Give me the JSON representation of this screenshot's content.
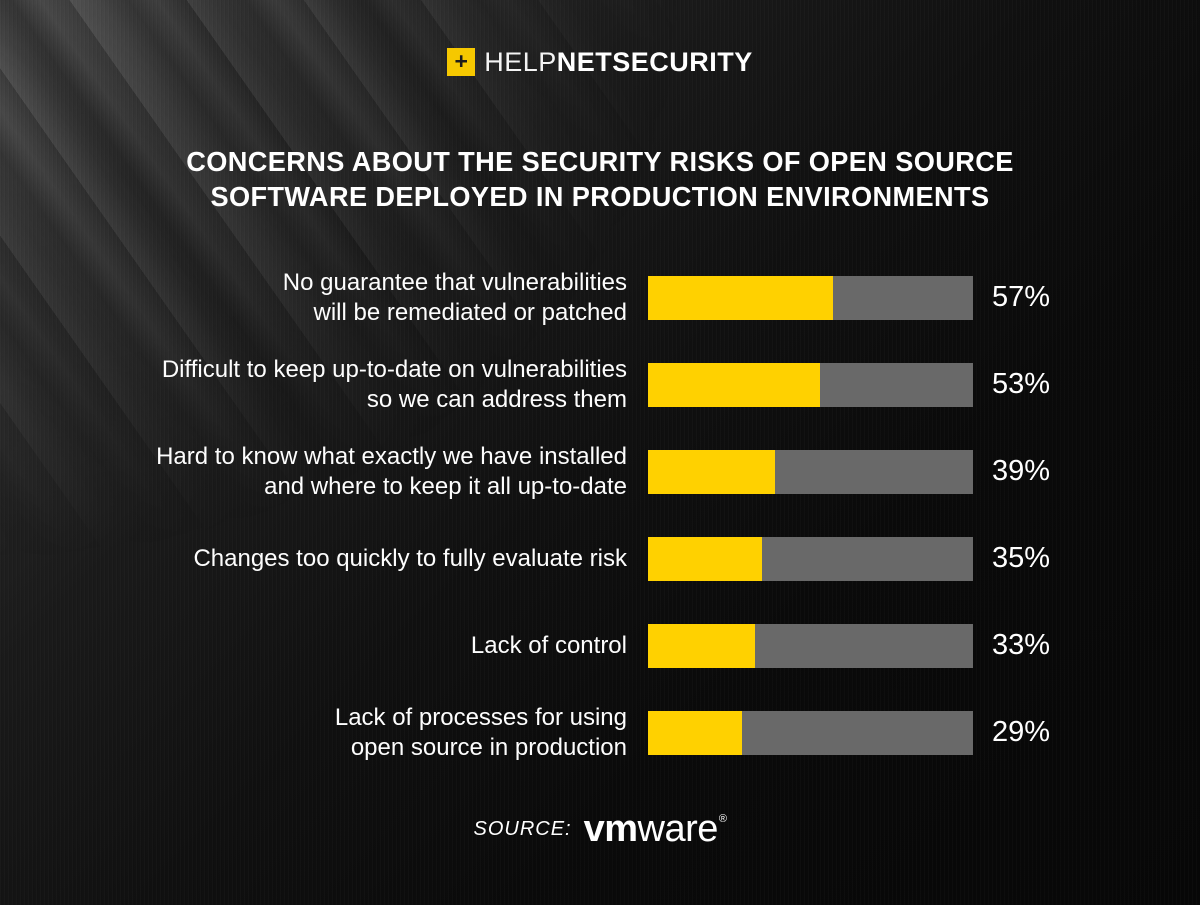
{
  "header": {
    "logo": {
      "icon": "plus-in-yellow-square",
      "plus_glyph": "+",
      "part_regular": "HELP",
      "part_bold": "NETSECURITY"
    }
  },
  "title": {
    "text": "CONCERNS ABOUT THE SECURITY RISKS OF OPEN SOURCE\nSOFTWARE DEPLOYED IN PRODUCTION ENVIRONMENTS"
  },
  "chart_data": {
    "type": "bar",
    "orientation": "horizontal",
    "title": "CONCERNS ABOUT THE SECURITY RISKS OF OPEN SOURCE SOFTWARE DEPLOYED IN PRODUCTION ENVIRONMENTS",
    "categories": [
      "No guarantee that vulnerabilities\nwill be remediated or patched",
      "Difficult to keep up-to-date on vulnerabilities\nso we can address them",
      "Hard to know what exactly we have installed\nand where to keep it all up-to-date",
      "Changes too quickly to fully evaluate risk",
      "Lack of control",
      "Lack of processes for using\nopen source in production"
    ],
    "values": [
      57,
      53,
      39,
      35,
      33,
      29
    ],
    "value_suffix": "%",
    "xlim": [
      0,
      100
    ],
    "grid": false,
    "legend": "none",
    "bar_color": "#FFD100",
    "track_color": "#696969",
    "source": "VMware"
  },
  "footer": {
    "source_label": "SOURCE:",
    "brand_bold": "vm",
    "brand_regular": "ware",
    "registered_mark": "®"
  },
  "colors": {
    "accent_yellow": "#FFD100",
    "bar_gray": "#696969",
    "text": "#FFFFFF",
    "background": "#0B0B0B"
  }
}
